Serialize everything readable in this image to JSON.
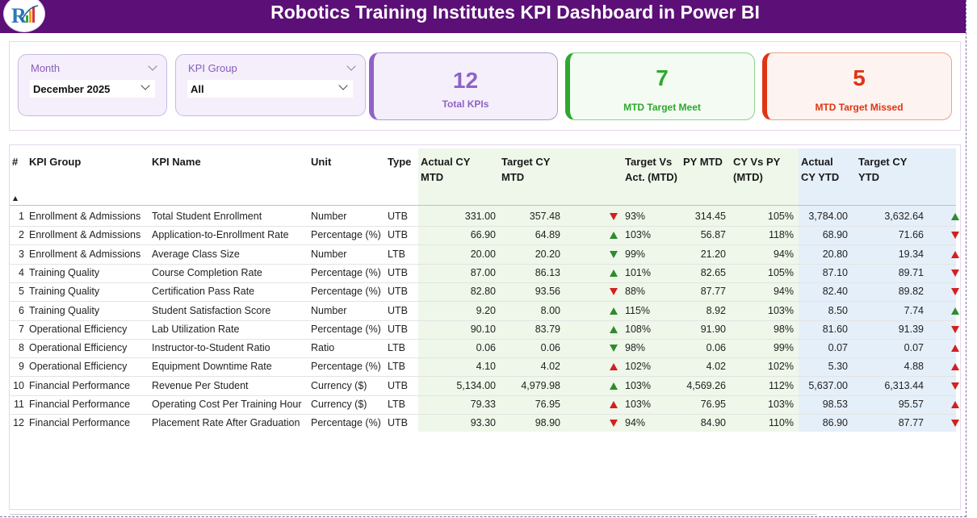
{
  "header": {
    "title": "Robotics Training Institutes KPI Dashboard in Power BI"
  },
  "filters": {
    "month": {
      "label": "Month",
      "value": "December 2025"
    },
    "kpi_group": {
      "label": "KPI Group",
      "value": "All"
    }
  },
  "cards": {
    "total": {
      "value": "12",
      "label": "Total KPIs",
      "color": "#8e63c7"
    },
    "meet": {
      "value": "7",
      "label": "MTD Target Meet",
      "color": "#2ea82e"
    },
    "missed": {
      "value": "5",
      "label": "MTD Target Missed",
      "color": "#e03412"
    }
  },
  "table": {
    "columns": [
      "#",
      "KPI Group",
      "KPI Name",
      "Unit",
      "Type",
      "Actual CY MTD",
      "Target CY MTD",
      "Target Vs Act. (MTD)",
      "PY MTD",
      "CY Vs PY (MTD)",
      "Actual CY YTD",
      "Target CY YTD"
    ],
    "rows": [
      {
        "n": "1",
        "group": "Enrollment & Admissions",
        "name": "Total Student Enrollment",
        "unit": "Number",
        "type": "UTB",
        "actual_mtd": "331.00",
        "target_mtd": "357.48",
        "icon": "down-red",
        "tva": "93%",
        "py_mtd": "314.45",
        "cy_py": "105%",
        "actual_ytd": "3,784.00",
        "target_ytd": "3,632.64",
        "ytd_icon": "up-green"
      },
      {
        "n": "2",
        "group": "Enrollment & Admissions",
        "name": "Application-to-Enrollment Rate",
        "unit": "Percentage (%)",
        "type": "UTB",
        "actual_mtd": "66.90",
        "target_mtd": "64.89",
        "icon": "up-green",
        "tva": "103%",
        "py_mtd": "56.87",
        "cy_py": "118%",
        "actual_ytd": "68.90",
        "target_ytd": "71.66",
        "ytd_icon": "down-red"
      },
      {
        "n": "3",
        "group": "Enrollment & Admissions",
        "name": "Average Class Size",
        "unit": "Number",
        "type": "LTB",
        "actual_mtd": "20.00",
        "target_mtd": "20.20",
        "icon": "down-green",
        "tva": "99%",
        "py_mtd": "21.20",
        "cy_py": "94%",
        "actual_ytd": "20.80",
        "target_ytd": "19.34",
        "ytd_icon": "up-red"
      },
      {
        "n": "4",
        "group": "Training Quality",
        "name": "Course Completion Rate",
        "unit": "Percentage (%)",
        "type": "UTB",
        "actual_mtd": "87.00",
        "target_mtd": "86.13",
        "icon": "up-green",
        "tva": "101%",
        "py_mtd": "82.65",
        "cy_py": "105%",
        "actual_ytd": "87.10",
        "target_ytd": "89.71",
        "ytd_icon": "down-red"
      },
      {
        "n": "5",
        "group": "Training Quality",
        "name": "Certification Pass Rate",
        "unit": "Percentage (%)",
        "type": "UTB",
        "actual_mtd": "82.80",
        "target_mtd": "93.56",
        "icon": "down-red",
        "tva": "88%",
        "py_mtd": "87.77",
        "cy_py": "94%",
        "actual_ytd": "82.40",
        "target_ytd": "89.82",
        "ytd_icon": "down-red"
      },
      {
        "n": "6",
        "group": "Training Quality",
        "name": "Student Satisfaction Score",
        "unit": "Number",
        "type": "UTB",
        "actual_mtd": "9.20",
        "target_mtd": "8.00",
        "icon": "up-green",
        "tva": "115%",
        "py_mtd": "8.92",
        "cy_py": "103%",
        "actual_ytd": "8.50",
        "target_ytd": "7.74",
        "ytd_icon": "up-green"
      },
      {
        "n": "7",
        "group": "Operational Efficiency",
        "name": "Lab Utilization Rate",
        "unit": "Percentage (%)",
        "type": "UTB",
        "actual_mtd": "90.10",
        "target_mtd": "83.79",
        "icon": "up-green",
        "tva": "108%",
        "py_mtd": "91.90",
        "cy_py": "98%",
        "actual_ytd": "81.60",
        "target_ytd": "91.39",
        "ytd_icon": "down-red"
      },
      {
        "n": "8",
        "group": "Operational Efficiency",
        "name": "Instructor-to-Student Ratio",
        "unit": "Ratio",
        "type": "LTB",
        "actual_mtd": "0.06",
        "target_mtd": "0.06",
        "icon": "down-green",
        "tva": "98%",
        "py_mtd": "0.06",
        "cy_py": "99%",
        "actual_ytd": "0.07",
        "target_ytd": "0.07",
        "ytd_icon": "up-red"
      },
      {
        "n": "9",
        "group": "Operational Efficiency",
        "name": "Equipment Downtime Rate",
        "unit": "Percentage (%)",
        "type": "LTB",
        "actual_mtd": "4.10",
        "target_mtd": "4.02",
        "icon": "up-red",
        "tva": "102%",
        "py_mtd": "4.02",
        "cy_py": "102%",
        "actual_ytd": "5.30",
        "target_ytd": "4.88",
        "ytd_icon": "up-red"
      },
      {
        "n": "10",
        "group": "Financial Performance",
        "name": "Revenue Per Student",
        "unit": "Currency ($)",
        "type": "UTB",
        "actual_mtd": "5,134.00",
        "target_mtd": "4,979.98",
        "icon": "up-green",
        "tva": "103%",
        "py_mtd": "4,569.26",
        "cy_py": "112%",
        "actual_ytd": "5,637.00",
        "target_ytd": "6,313.44",
        "ytd_icon": "down-red"
      },
      {
        "n": "11",
        "group": "Financial Performance",
        "name": "Operating Cost Per Training Hour",
        "unit": "Currency ($)",
        "type": "LTB",
        "actual_mtd": "79.33",
        "target_mtd": "76.95",
        "icon": "up-red",
        "tva": "103%",
        "py_mtd": "76.95",
        "cy_py": "103%",
        "actual_ytd": "98.53",
        "target_ytd": "95.57",
        "ytd_icon": "up-red"
      },
      {
        "n": "12",
        "group": "Financial Performance",
        "name": "Placement Rate After Graduation",
        "unit": "Percentage (%)",
        "type": "UTB",
        "actual_mtd": "93.30",
        "target_mtd": "98.90",
        "icon": "down-red",
        "tva": "94%",
        "py_mtd": "84.90",
        "cy_py": "110%",
        "actual_ytd": "86.90",
        "target_ytd": "87.77",
        "ytd_icon": "down-red"
      }
    ]
  }
}
